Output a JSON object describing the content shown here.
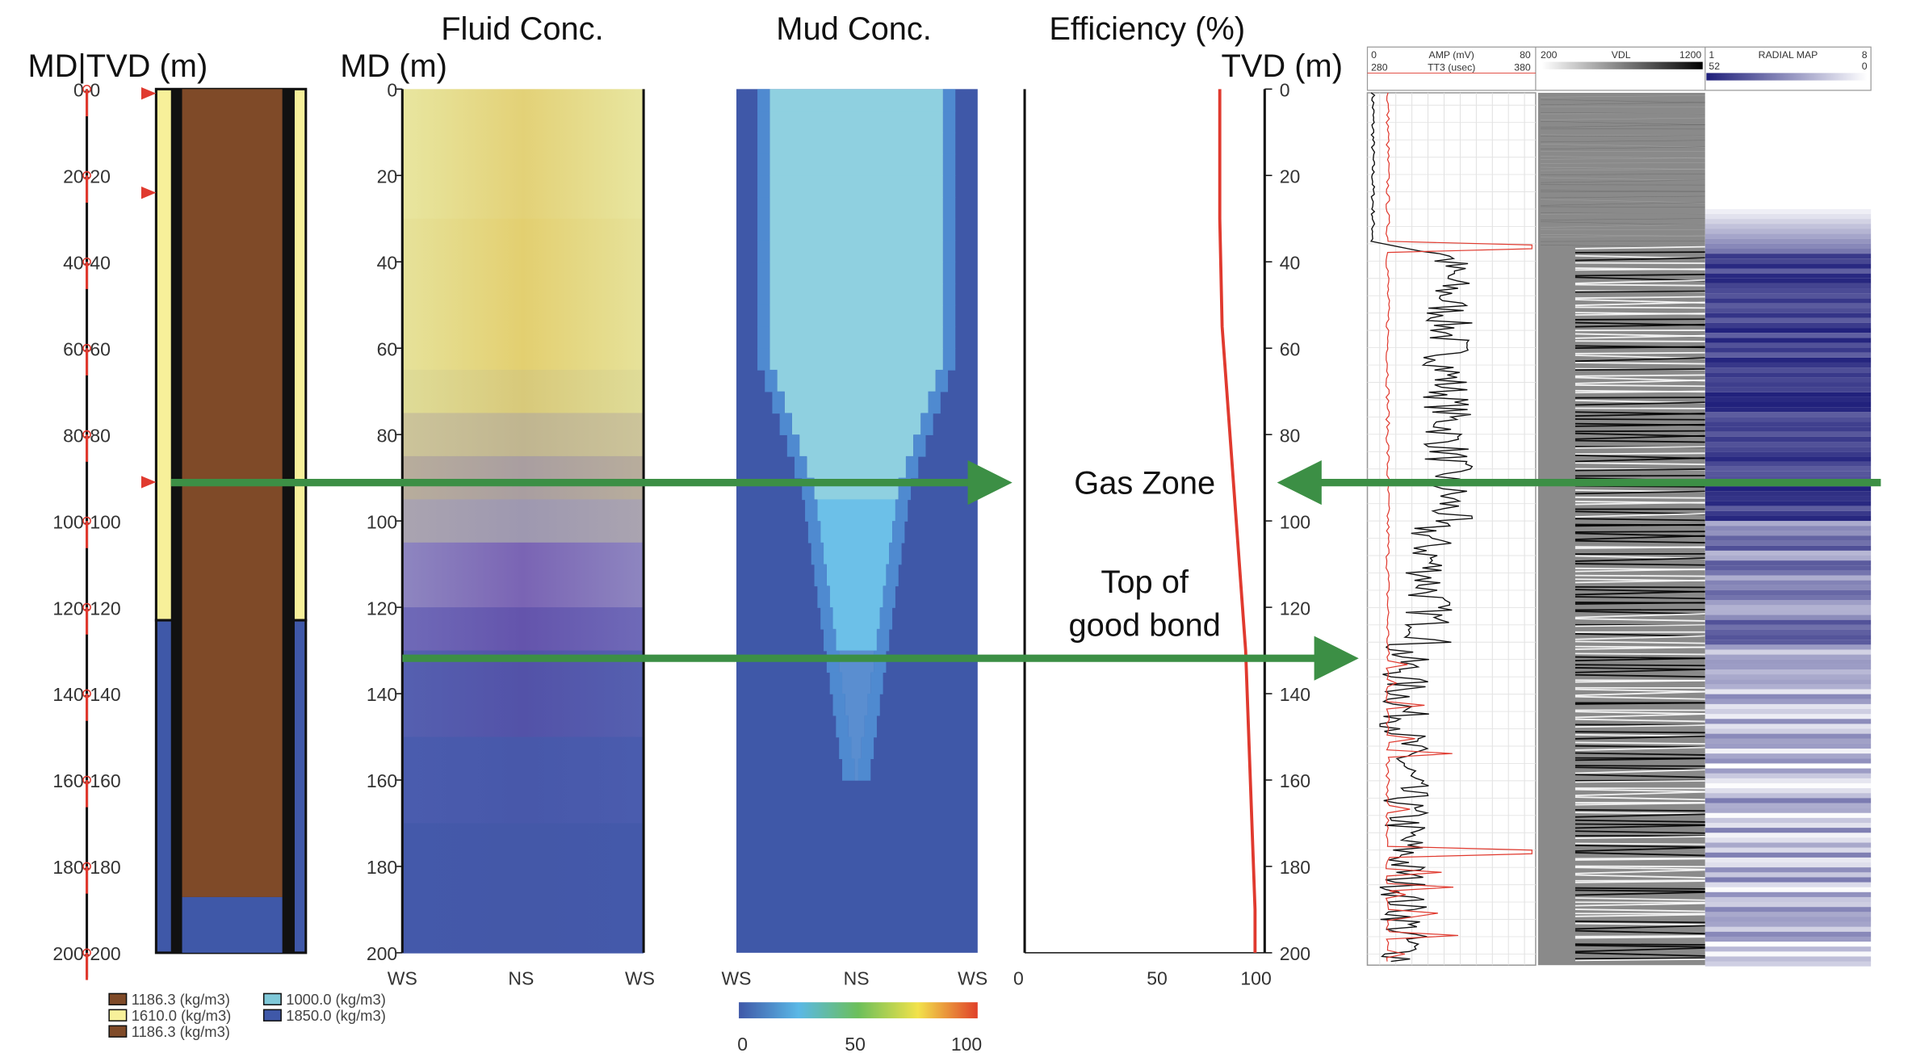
{
  "titles": {
    "md_tvd": "MD|TVD (m)",
    "md": "MD (m)",
    "fluid": "Fluid Conc.",
    "mud": "Mud Conc.",
    "efficiency": "Efficiency (%)",
    "tvd": "TVD (m)"
  },
  "depth_ticks": [
    "0",
    "20",
    "40",
    "60",
    "80",
    "100",
    "120",
    "140",
    "160",
    "180",
    "200"
  ],
  "well_ticks": [
    "0-0",
    "20-20",
    "40-40",
    "60-60",
    "80-80",
    "100-100",
    "120-120",
    "140-140",
    "160-160",
    "180-180",
    "200-200"
  ],
  "conc_xticks": [
    "WS",
    "NS",
    "WS"
  ],
  "colorbar_ticks": [
    "0",
    "50",
    "100"
  ],
  "eff_xticks": [
    "0",
    "50",
    "100"
  ],
  "legend": [
    {
      "label": "1186.3 (kg/m3)",
      "color": "#7f4a28"
    },
    {
      "label": "1610.0 (kg/m3)",
      "color": "#f7f09a"
    },
    {
      "label": "1186.3 (kg/m3)",
      "color": "#7f4a28"
    },
    {
      "label": "1000.0 (kg/m3)",
      "color": "#7fc8d8"
    },
    {
      "label": "1850.0 (kg/m3)",
      "color": "#3f58a8"
    }
  ],
  "annotations": {
    "gas_zone": "Gas Zone",
    "top_of": "Top of",
    "good_bond": "good bond"
  },
  "log_header": {
    "amp_min": "0",
    "amp_label": "AMP (mV)",
    "amp_max": "80",
    "tt_min": "280",
    "tt_label": "TT3 (usec)",
    "tt_max": "380",
    "vdl_min": "200",
    "vdl_label": "VDL",
    "vdl_max": "1200",
    "rm_min": "1",
    "rm_label": "RADIAL MAP",
    "rm_max": "8",
    "rm_sub_left": "52",
    "rm_sub_right": "0"
  },
  "colors": {
    "arrow": "#3c8f45",
    "efficiency": "#e03a2f",
    "cement": "#3f58a8",
    "spacer": "#f7f09a",
    "mud": "#7f4a28"
  },
  "chart_data": {
    "type": "line",
    "title": "Efficiency (%)",
    "ylabel": "TVD (m)",
    "xlim": [
      0,
      100
    ],
    "ylim": [
      200,
      0
    ],
    "x": [
      83,
      83,
      84,
      86,
      88,
      90,
      92,
      94,
      95,
      96,
      97,
      98,
      98
    ],
    "y": [
      0,
      30,
      55,
      70,
      85,
      100,
      115,
      130,
      145,
      160,
      175,
      190,
      200
    ]
  }
}
